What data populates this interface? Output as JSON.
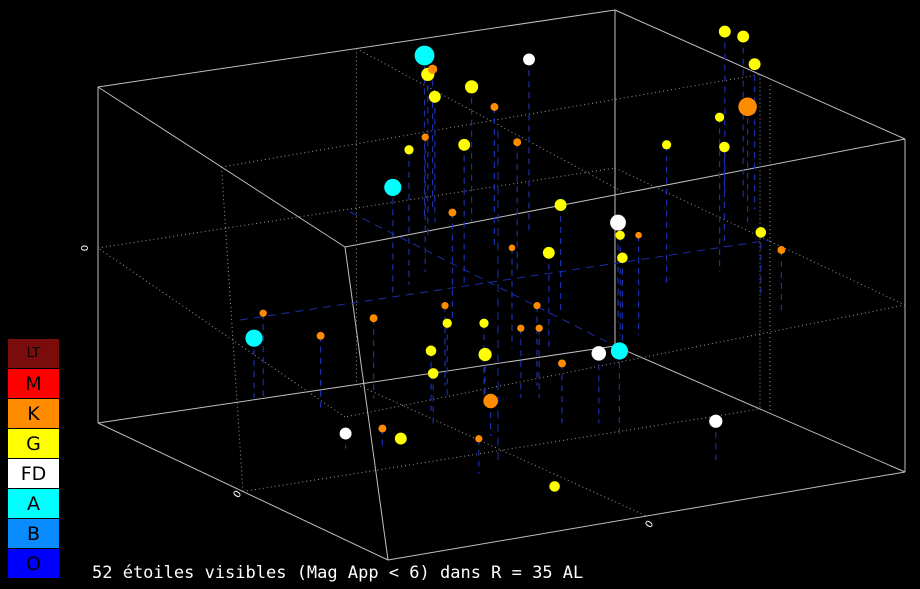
{
  "chart_data": {
    "type": "scatter",
    "title": "",
    "axis_tick_labels": {
      "x": "0",
      "y": "0",
      "z": "0"
    },
    "grid": true,
    "legend_placement": "bottom-left",
    "legend": [
      {
        "label": "LT",
        "color": "#7a0c0c"
      },
      {
        "label": "M",
        "color": "#ff0000"
      },
      {
        "label": "K",
        "color": "#ff8c00"
      },
      {
        "label": "G",
        "color": "#ffff00"
      },
      {
        "label": "FD",
        "color": "#ffffff"
      },
      {
        "label": "A",
        "color": "#00ffff"
      },
      {
        "label": "B",
        "color": "#0a8cff"
      },
      {
        "label": "O",
        "color": "#0000ff"
      }
    ],
    "stars": [
      {
        "class": "A",
        "x": -5,
        "y": -25,
        "z": 14,
        "mag_size": 3
      },
      {
        "class": "A",
        "x": -10,
        "y": -12,
        "z": 4,
        "mag_size": 2.6
      },
      {
        "class": "A",
        "x": -27,
        "y": 4,
        "z": -6,
        "mag_size": 2.6
      },
      {
        "class": "A",
        "x": 12,
        "y": 10,
        "z": -1,
        "mag_size": 2.6
      },
      {
        "class": "FD",
        "x": 14,
        "y": -8,
        "z": 2,
        "mag_size": 2.4
      },
      {
        "class": "FD",
        "x": 6,
        "y": -22,
        "z": 17,
        "mag_size": 1.8
      },
      {
        "class": "FD",
        "x": 10,
        "y": 8,
        "z": -4,
        "mag_size": 2.2
      },
      {
        "class": "FD",
        "x": 22,
        "y": 14,
        "z": -10,
        "mag_size": 2
      },
      {
        "class": "FD",
        "x": -18,
        "y": 12,
        "z": -15,
        "mag_size": 1.8
      },
      {
        "class": "K",
        "x": 30,
        "y": -24,
        "z": 5,
        "mag_size": 2.8
      },
      {
        "class": "K",
        "x": -2,
        "y": 10,
        "z": -11,
        "mag_size": 2.2
      },
      {
        "class": "G",
        "x": -5,
        "y": -22,
        "z": 14,
        "mag_size": 2
      },
      {
        "class": "G",
        "x": 0,
        "y": -24,
        "z": 9,
        "mag_size": 2
      },
      {
        "class": "G",
        "x": -4,
        "y": -24,
        "z": 7,
        "mag_size": 1.8
      },
      {
        "class": "G",
        "x": 6,
        "y": -4,
        "z": 1,
        "mag_size": 1.8
      },
      {
        "class": "G",
        "x": -2,
        "y": 5,
        "z": -8,
        "mag_size": 2
      },
      {
        "class": "G",
        "x": -12,
        "y": 12,
        "z": -16,
        "mag_size": 1.8
      },
      {
        "class": "G",
        "x": 4,
        "y": 18,
        "z": -18,
        "mag_size": 1.6
      },
      {
        "class": "G",
        "x": 28,
        "y": -28,
        "z": 15,
        "mag_size": 1.8
      },
      {
        "class": "G",
        "x": 30,
        "y": -28,
        "z": 14,
        "mag_size": 1.8
      },
      {
        "class": "G",
        "x": 31,
        "y": -26,
        "z": 11,
        "mag_size": 1.8
      },
      {
        "class": "G",
        "x": 26,
        "y": -16,
        "z": 13,
        "mag_size": 1.4
      },
      {
        "class": "G",
        "x": 27,
        "y": -20,
        "z": 2,
        "mag_size": 1.6
      },
      {
        "class": "G",
        "x": 30,
        "y": -12,
        "z": -5,
        "mag_size": 1.6
      },
      {
        "class": "G",
        "x": 14,
        "y": -4,
        "z": 0,
        "mag_size": 1.6
      },
      {
        "class": "G",
        "x": 8,
        "y": -10,
        "z": 3,
        "mag_size": 1.8
      },
      {
        "class": "G",
        "x": -6,
        "y": 4,
        "z": -3,
        "mag_size": 1.4
      },
      {
        "class": "G",
        "x": -8,
        "y": 6,
        "z": -6,
        "mag_size": 1.6
      },
      {
        "class": "G",
        "x": -8,
        "y": 8,
        "z": -8,
        "mag_size": 1.6
      },
      {
        "class": "G",
        "x": -2,
        "y": 4,
        "z": -3,
        "mag_size": 1.4
      },
      {
        "class": "G",
        "x": 20,
        "y": -14,
        "z": 10,
        "mag_size": 1.4
      },
      {
        "class": "G",
        "x": -2,
        "y": -14,
        "z": 10,
        "mag_size": 1.8
      },
      {
        "class": "G",
        "x": -8,
        "y": -14,
        "z": 9,
        "mag_size": 1.4
      },
      {
        "class": "K",
        "x": -4,
        "y": -26,
        "z": 10,
        "mag_size": 1.4
      },
      {
        "class": "K",
        "x": 2,
        "y": -20,
        "z": 10,
        "mag_size": 1.2
      },
      {
        "class": "K",
        "x": 4,
        "y": -16,
        "z": 8,
        "mag_size": 1.2
      },
      {
        "class": "K",
        "x": -6,
        "y": -16,
        "z": 9,
        "mag_size": 1.1
      },
      {
        "class": "K",
        "x": -4,
        "y": -8,
        "z": 4,
        "mag_size": 1.2
      },
      {
        "class": "K",
        "x": -14,
        "y": 4,
        "z": -2,
        "mag_size": 1.2
      },
      {
        "class": "K",
        "x": -6,
        "y": 2,
        "z": -2,
        "mag_size": 1.1
      },
      {
        "class": "K",
        "x": 4,
        "y": 2,
        "z": -2,
        "mag_size": 1.1
      },
      {
        "class": "K",
        "x": 2,
        "y": 4,
        "z": -4,
        "mag_size": 1.1
      },
      {
        "class": "K",
        "x": 4,
        "y": 4,
        "z": -4,
        "mag_size": 1.1
      },
      {
        "class": "K",
        "x": 6,
        "y": 8,
        "z": -6,
        "mag_size": 1.2
      },
      {
        "class": "K",
        "x": -20,
        "y": 6,
        "z": -3,
        "mag_size": 1.2
      },
      {
        "class": "K",
        "x": -26,
        "y": 4,
        "z": -1,
        "mag_size": 1.1
      },
      {
        "class": "K",
        "x": -14,
        "y": 12,
        "z": -14,
        "mag_size": 1.2
      },
      {
        "class": "K",
        "x": 16,
        "y": -6,
        "z": 2,
        "mag_size": 1
      },
      {
        "class": "K",
        "x": 32,
        "y": -10,
        "z": -6,
        "mag_size": 1.2
      },
      {
        "class": "K",
        "x": -4,
        "y": 16,
        "z": -11,
        "mag_size": 1.1
      },
      {
        "class": "G",
        "x": 14,
        "y": -6,
        "z": 2,
        "mag_size": 1.4
      },
      {
        "class": "K",
        "x": 2,
        "y": -4,
        "z": 2,
        "mag_size": 1
      }
    ],
    "caption": "52 étoiles visibles (Mag App < 6) dans R = 35 AL"
  }
}
